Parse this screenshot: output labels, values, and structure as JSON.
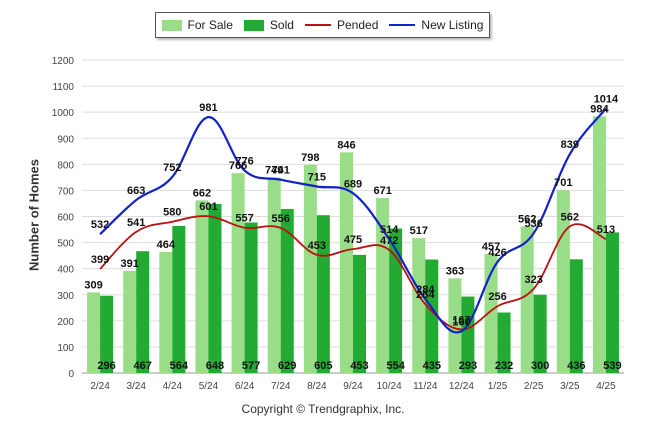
{
  "legend": {
    "for_sale": "For Sale",
    "sold": "Sold",
    "pended": "Pended",
    "new_listing": "New Listing"
  },
  "footer": "Copyright © Trendgraphix, Inc.",
  "colors": {
    "for_sale": "#99dd88",
    "sold": "#22aa33",
    "pended": "#bb1111",
    "new_listing": "#1122cc",
    "grid": "#dddddd"
  },
  "chart_data": {
    "type": "bar",
    "ylabel": "Number of Homes",
    "ylim": [
      0,
      1200
    ],
    "yticks": [
      0,
      100,
      200,
      300,
      400,
      500,
      600,
      700,
      800,
      900,
      1000,
      1100,
      1200
    ],
    "grid": true,
    "legend_position": "top-center",
    "categories": [
      "2/24",
      "3/24",
      "4/24",
      "5/24",
      "6/24",
      "7/24",
      "8/24",
      "9/24",
      "10/24",
      "11/24",
      "12/24",
      "1/25",
      "2/25",
      "3/25",
      "4/25"
    ],
    "series": [
      {
        "name": "For Sale",
        "kind": "bar",
        "values": [
          309,
          391,
          464,
          662,
          766,
          749,
          798,
          846,
          671,
          517,
          363,
          457,
          562,
          701,
          984
        ]
      },
      {
        "name": "Sold",
        "kind": "bar",
        "values": [
          296,
          467,
          564,
          648,
          577,
          629,
          605,
          453,
          554,
          435,
          293,
          232,
          300,
          436,
          539
        ]
      },
      {
        "name": "Pended",
        "kind": "line",
        "values": [
          399,
          541,
          580,
          601,
          557,
          556,
          453,
          475,
          472,
          264,
          167,
          256,
          323,
          562,
          513
        ]
      },
      {
        "name": "New Listing",
        "kind": "line",
        "values": [
          532,
          663,
          752,
          981,
          776,
          741,
          715,
          689,
          514,
          284,
          160,
          426,
          536,
          839,
          1014
        ]
      }
    ]
  }
}
